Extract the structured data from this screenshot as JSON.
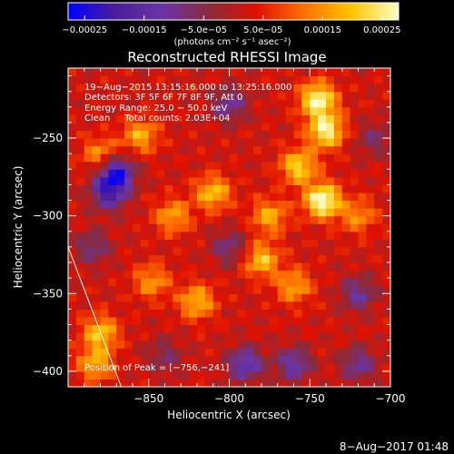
{
  "chart_data": {
    "type": "heatmap",
    "title": "Reconstructed RHESSI Image",
    "xlabel": "Heliocentric X (arcsec)",
    "ylabel": "Heliocentric Y (arcsec)",
    "xlim": [
      -900,
      -700
    ],
    "ylim": [
      -410,
      -205
    ],
    "x_ticks": [
      -850,
      -800,
      -750,
      -700
    ],
    "x_tick_labels": [
      "−850",
      "−800",
      "−750",
      "−700"
    ],
    "y_ticks": [
      -250,
      -300,
      -350,
      -400
    ],
    "y_tick_labels": [
      "−250",
      "−300",
      "−350",
      "−400"
    ],
    "colorbar": {
      "min": -0.00025,
      "max": 0.00025,
      "colormap": [
        "#0000ff",
        "#4c1d9a",
        "#6a35a6",
        "#8a2a3a",
        "#e01000",
        "#ff7000",
        "#ffc400",
        "#ffffc8"
      ],
      "unit_label": "(photons cm⁻² s⁻¹ asec⁻²)",
      "tick_labels": [
        "−0.00025",
        "−0.00015",
        "−5.0e−05",
        "5.0e−05",
        "0.00015",
        "0.00025"
      ]
    },
    "annotations": [
      "19−Aug−2015 13:15:16.000 to 13:25:16.000",
      "Detectors: 3F 5F 6F 7F 8F 9F, Att 0",
      "Energy Range: 25.0 − 50.0 keV",
      "Clean     Total counts: 2.03E+04"
    ],
    "peak_label": "Position of Peak = [−756,−241]",
    "peak_position": [
      -756,
      -241
    ],
    "limb_line": [
      [
        -900,
        -320
      ],
      [
        -867,
        -410
      ]
    ],
    "hotspots": [
      {
        "x": -745,
        "y": -225,
        "intensity": 0.00023
      },
      {
        "x": -740,
        "y": -245,
        "intensity": 0.00022
      },
      {
        "x": -742,
        "y": -290,
        "intensity": 0.00025
      },
      {
        "x": -757,
        "y": -268,
        "intensity": 0.00018
      },
      {
        "x": -775,
        "y": -300,
        "intensity": 0.00014
      },
      {
        "x": -780,
        "y": -328,
        "intensity": 0.00016
      },
      {
        "x": -760,
        "y": -345,
        "intensity": 0.00013
      },
      {
        "x": -810,
        "y": -285,
        "intensity": 0.00016
      },
      {
        "x": -835,
        "y": -300,
        "intensity": 0.00013
      },
      {
        "x": -855,
        "y": -248,
        "intensity": 0.00014
      },
      {
        "x": -880,
        "y": -260,
        "intensity": 0.00012
      },
      {
        "x": -820,
        "y": -355,
        "intensity": 0.00015
      },
      {
        "x": -848,
        "y": -342,
        "intensity": 0.00012
      },
      {
        "x": -880,
        "y": -375,
        "intensity": 0.00016
      },
      {
        "x": -883,
        "y": -395,
        "intensity": 0.00014
      },
      {
        "x": -720,
        "y": -300,
        "intensity": 0.00011
      }
    ],
    "coldspots": [
      {
        "x": -870,
        "y": -272,
        "intensity": -0.00022
      },
      {
        "x": -875,
        "y": -285,
        "intensity": -0.00018
      },
      {
        "x": -800,
        "y": -228,
        "intensity": -0.00012
      },
      {
        "x": -800,
        "y": -320,
        "intensity": -0.0001
      },
      {
        "x": -720,
        "y": -350,
        "intensity": -0.00012
      },
      {
        "x": -790,
        "y": -395,
        "intensity": -0.00016
      },
      {
        "x": -760,
        "y": -395,
        "intensity": -0.00014
      },
      {
        "x": -720,
        "y": -395,
        "intensity": -0.00012
      },
      {
        "x": -840,
        "y": -390,
        "intensity": -8e-05
      },
      {
        "x": -885,
        "y": -320,
        "intensity": -0.0001
      },
      {
        "x": -710,
        "y": -250,
        "intensity": -8e-05
      }
    ]
  },
  "footer": {
    "timestamp": "8−Aug−2017 01:48"
  }
}
